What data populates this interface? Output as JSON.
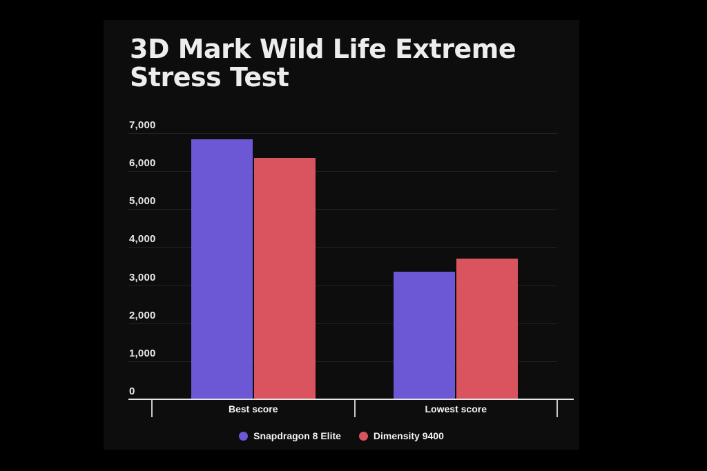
{
  "window": {
    "background": "#000000",
    "panel_background": "#0d0d0d"
  },
  "chart_data": {
    "type": "bar",
    "title": "3D Mark Wild Life Extreme Stress Test",
    "categories": [
      "Best score",
      "Lowest score"
    ],
    "series": [
      {
        "name": "Snapdragon 8 Elite",
        "color": "#6c57d5",
        "values": [
          6840,
          3360
        ]
      },
      {
        "name": "Dimensity 9400",
        "color": "#d9545f",
        "values": [
          6340,
          3700
        ]
      }
    ],
    "xlabel": "",
    "ylabel": "",
    "ylim": [
      0,
      7000
    ],
    "yticks": [
      0,
      1000,
      2000,
      3000,
      4000,
      5000,
      6000,
      7000
    ],
    "ytick_labels": [
      "0",
      "1,000",
      "2,000",
      "3,000",
      "4,000",
      "5,000",
      "6,000",
      "7,000"
    ],
    "grid": "horizontal",
    "legend_position": "bottom",
    "colors": {
      "gridline": "#232323",
      "axis": "#e6e6e6",
      "title_text": "#ededed",
      "tick_text": "#e8e8e8",
      "label_text": "#f2f2f2"
    }
  }
}
